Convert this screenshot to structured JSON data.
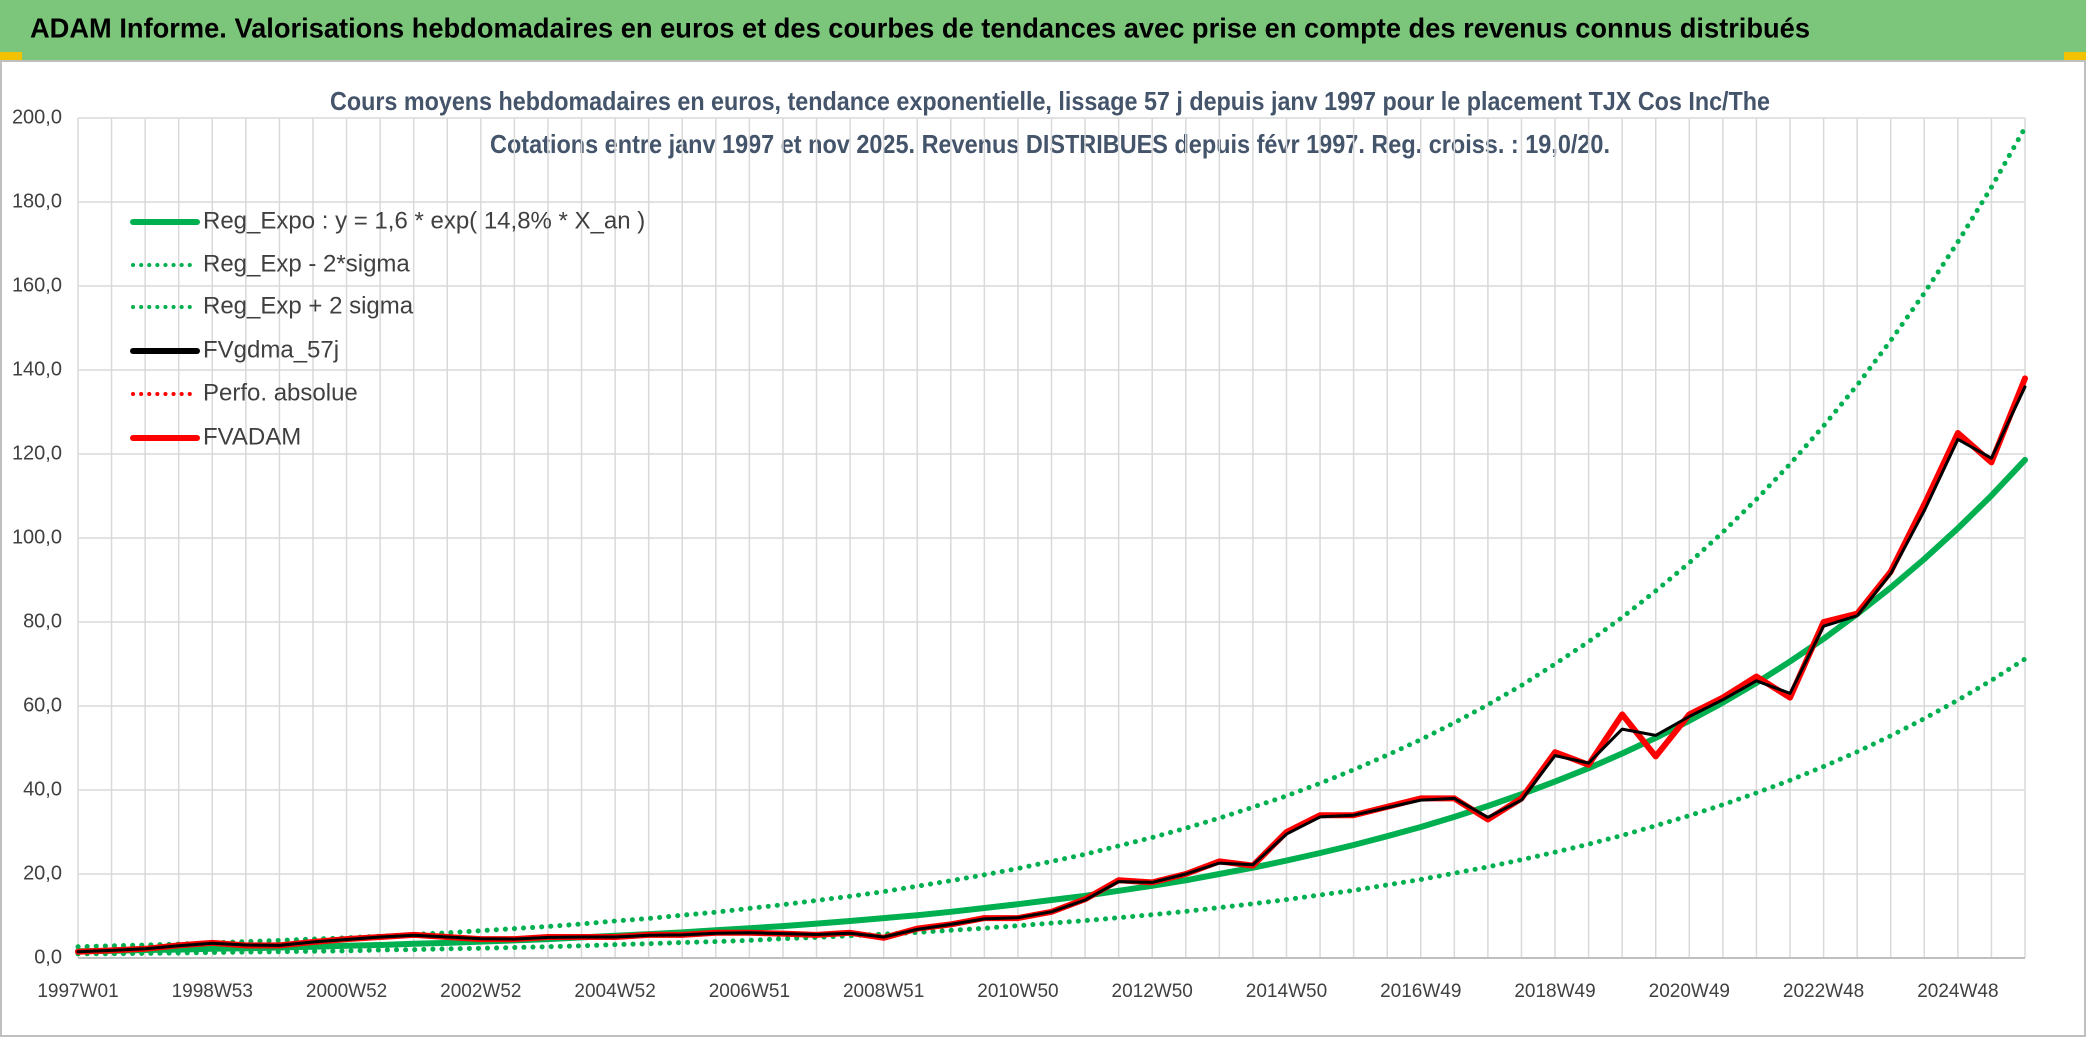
{
  "header": {
    "title": "ADAM Informe. Valorisations hebdomadaires en euros et des courbes de tendances avec prise en compte des revenus connus distribués"
  },
  "chart_data": {
    "type": "line",
    "title": "Cours moyens hebdomadaires en euros, tendance exponentielle, lissage 57 j depuis janv 1997 pour le placement TJX Cos Inc/The",
    "subtitle": "Cotations entre janv 1997 et nov 2025. Revenus DISTRIBUES depuis févr 1997. Reg. croiss. : 19,0/20.",
    "categories": [
      "1997W01",
      null,
      null,
      null,
      "1998W53",
      null,
      null,
      null,
      "2000W52",
      null,
      null,
      null,
      "2002W52",
      null,
      null,
      null,
      "2004W52",
      null,
      null,
      null,
      "2006W51",
      null,
      null,
      null,
      "2008W51",
      null,
      null,
      null,
      "2010W50",
      null,
      null,
      null,
      "2012W50",
      null,
      null,
      null,
      "2014W50",
      null,
      null,
      null,
      "2016W49",
      null,
      null,
      null,
      "2018W49",
      null,
      null,
      null,
      "2020W49",
      null,
      null,
      null,
      "2022W48",
      null,
      null,
      null,
      "2024W48",
      null,
      null
    ],
    "ylim": [
      0,
      200
    ],
    "yticks": [
      {
        "value": 0,
        "label": "0,0"
      },
      {
        "value": 20,
        "label": "20,0"
      },
      {
        "value": 40,
        "label": "40,0"
      },
      {
        "value": 60,
        "label": "60,0"
      },
      {
        "value": 80,
        "label": "80,0"
      },
      {
        "value": 100,
        "label": "100,0"
      },
      {
        "value": 120,
        "label": "120,0"
      },
      {
        "value": 140,
        "label": "140,0"
      },
      {
        "value": 160,
        "label": "160,0"
      },
      {
        "value": 180,
        "label": "180,0"
      },
      {
        "value": 200,
        "label": "200,0"
      }
    ],
    "grid": true,
    "legend": "top-left",
    "series": [
      {
        "name": "Reg_Expo : y = 1,6 * exp( 14,8% *  X_an )",
        "color": "#00b050",
        "line_style": "solid",
        "values": [
          1.6,
          1.7,
          1.9,
          2.0,
          2.2,
          2.3,
          2.5,
          2.7,
          2.9,
          3.1,
          3.4,
          3.6,
          3.9,
          4.2,
          4.5,
          4.9,
          5.3,
          5.7,
          6.1,
          6.6,
          7.1,
          7.6,
          8.2,
          8.8,
          9.5,
          10.2,
          11.0,
          11.9,
          12.8,
          13.8,
          14.8,
          16.0,
          17.2,
          18.5,
          20.0,
          21.5,
          23.2,
          25.0,
          26.9,
          29.0,
          31.2,
          33.6,
          36.2,
          39.0,
          42.0,
          45.2,
          48.7,
          52.4,
          56.5,
          60.8,
          65.5,
          70.6,
          76.0,
          81.9,
          88.2,
          95.0,
          102.3,
          110.1,
          118.6
        ]
      },
      {
        "name": "Reg_Exp - 2*sigma",
        "color": "#00b050",
        "line_style": "dotted",
        "values": [
          1.0,
          1.0,
          1.1,
          1.2,
          1.3,
          1.4,
          1.5,
          1.6,
          1.7,
          1.9,
          2.0,
          2.2,
          2.3,
          2.5,
          2.7,
          2.9,
          3.2,
          3.4,
          3.7,
          3.9,
          4.2,
          4.6,
          4.9,
          5.3,
          5.7,
          6.1,
          6.6,
          7.1,
          7.7,
          8.3,
          8.9,
          9.6,
          10.3,
          11.1,
          12.0,
          12.9,
          13.9,
          15.0,
          16.1,
          17.4,
          18.7,
          20.2,
          21.7,
          23.4,
          25.2,
          27.1,
          29.2,
          31.5,
          33.9,
          36.5,
          39.3,
          42.3,
          45.6,
          49.1,
          52.9,
          57.0,
          61.4,
          66.1,
          71.2
        ]
      },
      {
        "name": "Reg_Exp + 2 sigma",
        "color": "#00b050",
        "line_style": "dotted",
        "values": [
          2.7,
          2.9,
          3.1,
          3.3,
          3.6,
          3.9,
          4.2,
          4.5,
          4.8,
          5.2,
          5.6,
          6.0,
          6.5,
          7.0,
          7.5,
          8.1,
          8.8,
          9.4,
          10.2,
          10.9,
          11.8,
          12.7,
          13.7,
          14.7,
          15.8,
          17.1,
          18.4,
          19.8,
          21.3,
          23.0,
          24.7,
          26.7,
          28.7,
          30.9,
          33.3,
          35.9,
          38.6,
          41.6,
          44.8,
          48.3,
          52.0,
          56.0,
          60.3,
          64.9,
          70.0,
          75.3,
          81.1,
          87.4,
          94.1,
          101.4,
          109.2,
          117.6,
          126.7,
          136.4,
          147.0,
          158.3,
          170.5,
          183.5,
          197.7
        ]
      },
      {
        "name": "FVgdma_57j",
        "color": "#000000",
        "line_style": "solid",
        "values": [
          1.5,
          1.8,
          2.2,
          2.9,
          3.5,
          3.1,
          3.0,
          3.8,
          4.4,
          5.0,
          5.4,
          5.0,
          4.6,
          4.5,
          4.9,
          5.0,
          5.0,
          5.4,
          5.5,
          5.9,
          6.0,
          5.8,
          5.6,
          5.9,
          5.0,
          6.8,
          8.0,
          9.3,
          9.6,
          11.0,
          13.8,
          18.2,
          18.0,
          20.0,
          22.6,
          22.2,
          29.5,
          33.6,
          34.0,
          35.8,
          37.6,
          38.0,
          33.5,
          37.6,
          48.2,
          46.4,
          54.5,
          53.0,
          57.5,
          61.5,
          66.0,
          63.0,
          79.0,
          81.5,
          91.5,
          106.5,
          123.5,
          119.0,
          136.0
        ]
      },
      {
        "name": "Perfo. absolue",
        "color": "#ff0000",
        "line_style": "dotted",
        "values": [
          1.5,
          1.8,
          2.2,
          3.0,
          3.6,
          3.0,
          3.0,
          3.8,
          4.5,
          5.0,
          5.5,
          5.0,
          4.5,
          4.5,
          5.0,
          5.0,
          5.0,
          5.5,
          5.5,
          6.0,
          6.0,
          5.8,
          5.5,
          6.0,
          4.8,
          7.0,
          8.0,
          9.5,
          9.5,
          11.0,
          14.0,
          18.5,
          18.0,
          20.0,
          23.0,
          22.0,
          30.0,
          34.0,
          34.0,
          36.0,
          38.0,
          38.0,
          33.0,
          38.0,
          49.0,
          46.0,
          58.0,
          48.0,
          58.0,
          62.0,
          67.0,
          62.0,
          80.0,
          82.0,
          92.0,
          108.0,
          125.0,
          118.0,
          138.0
        ]
      },
      {
        "name": "FVADAM",
        "color": "#ff0000",
        "line_style": "solid",
        "values": [
          1.5,
          1.8,
          2.2,
          3.0,
          3.6,
          3.0,
          3.0,
          3.8,
          4.5,
          5.0,
          5.5,
          5.0,
          4.5,
          4.5,
          5.0,
          5.0,
          5.0,
          5.5,
          5.5,
          6.0,
          6.0,
          5.8,
          5.5,
          6.0,
          4.8,
          7.0,
          8.0,
          9.5,
          9.5,
          11.0,
          14.0,
          18.5,
          18.0,
          20.0,
          23.0,
          22.0,
          30.0,
          34.0,
          34.0,
          36.0,
          38.0,
          38.0,
          33.0,
          38.0,
          49.0,
          46.0,
          58.0,
          48.0,
          58.0,
          62.0,
          67.0,
          62.0,
          80.0,
          82.0,
          92.0,
          108.0,
          125.0,
          118.0,
          138.0
        ]
      }
    ]
  }
}
